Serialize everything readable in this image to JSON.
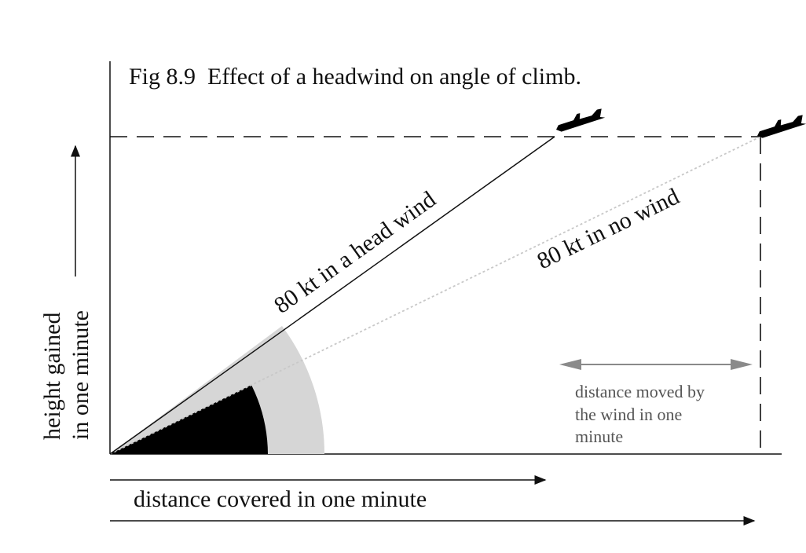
{
  "figure": {
    "title": "Fig 8.9  Effect of a headwind on angle of climb.",
    "y_axis_label": {
      "line1": "height gained",
      "line2": "in one minute"
    },
    "x_axis_label": "distance covered in one minute",
    "paths": {
      "headwind_label": "80 kt in a head wind",
      "nowind_label": "80 kt in no wind"
    },
    "wind_note": {
      "line1": "distance moved by",
      "line2": "the wind in one",
      "line3": "minute"
    },
    "icons": [
      "airplane-icon",
      "airplane-icon"
    ],
    "colors": {
      "ink": "#111111",
      "grey_text": "#555555",
      "sector_light": "#d6d6d6",
      "sector_dark": "#000000",
      "arrow_grey": "#8a8a8a"
    }
  }
}
